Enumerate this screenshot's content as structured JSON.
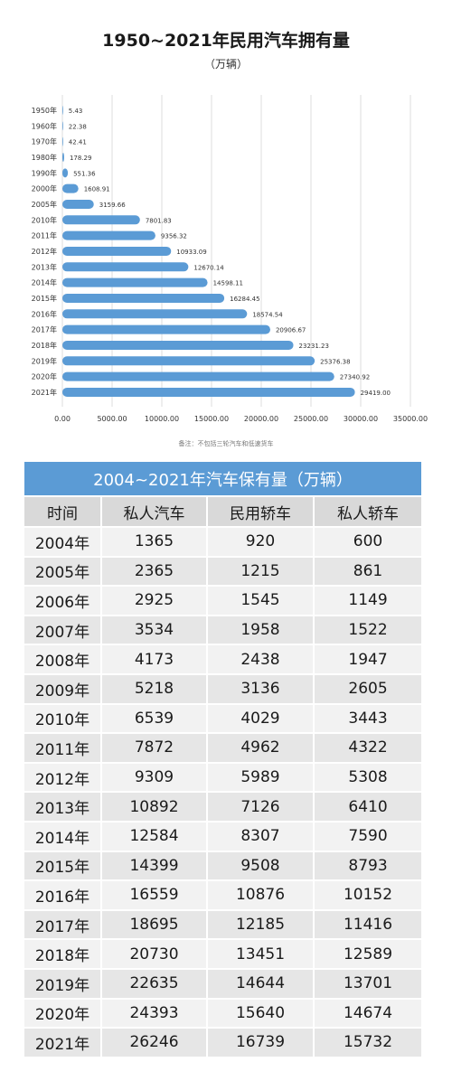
{
  "chart_data": {
    "type": "bar",
    "orientation": "horizontal",
    "title": "1950~2021年民用汽车拥有量",
    "subtitle": "（万辆）",
    "note": "备注：不包括三轮汽车和低速货车",
    "categories": [
      "1950年",
      "1960年",
      "1970年",
      "1980年",
      "1990年",
      "2000年",
      "2005年",
      "2010年",
      "2011年",
      "2012年",
      "2013年",
      "2014年",
      "2015年",
      "2016年",
      "2017年",
      "2018年",
      "2019年",
      "2020年",
      "2021年"
    ],
    "values": [
      5.43,
      22.38,
      42.41,
      178.29,
      551.36,
      1608.91,
      3159.66,
      7801.83,
      9356.32,
      10933.09,
      12670.14,
      14598.11,
      16284.45,
      18574.54,
      20906.67,
      23231.23,
      25376.38,
      27340.92,
      29419.0
    ],
    "value_labels": [
      "5.43",
      "22.38",
      "42.41",
      "178.29",
      "551.36",
      "1608.91",
      "3159.66",
      "7801.83",
      "9356.32",
      "10933.09",
      "12670.14",
      "14598.11",
      "16284.45",
      "18574.54",
      "20906.67",
      "23231.23",
      "25376.38",
      "27340.92",
      "29419.00"
    ],
    "xlim": [
      0,
      35000
    ],
    "x_ticks": [
      "0.00",
      "5000.00",
      "10000.00",
      "15000.00",
      "20000.00",
      "25000.00",
      "30000.00",
      "35000.00"
    ],
    "grid": true,
    "bar_color": "#5b9bd5"
  },
  "table": {
    "title": "2004~2021年汽车保有量（万辆）",
    "headers": [
      "时间",
      "私人汽车",
      "民用轿车",
      "私人轿车"
    ],
    "rows": [
      [
        "2004年",
        "1365",
        "920",
        "600"
      ],
      [
        "2005年",
        "2365",
        "1215",
        "861"
      ],
      [
        "2006年",
        "2925",
        "1545",
        "1149"
      ],
      [
        "2007年",
        "3534",
        "1958",
        "1522"
      ],
      [
        "2008年",
        "4173",
        "2438",
        "1947"
      ],
      [
        "2009年",
        "5218",
        "3136",
        "2605"
      ],
      [
        "2010年",
        "6539",
        "4029",
        "3443"
      ],
      [
        "2011年",
        "7872",
        "4962",
        "4322"
      ],
      [
        "2012年",
        "9309",
        "5989",
        "5308"
      ],
      [
        "2013年",
        "10892",
        "7126",
        "6410"
      ],
      [
        "2014年",
        "12584",
        "8307",
        "7590"
      ],
      [
        "2015年",
        "14399",
        "9508",
        "8793"
      ],
      [
        "2016年",
        "16559",
        "10876",
        "10152"
      ],
      [
        "2017年",
        "18695",
        "12185",
        "11416"
      ],
      [
        "2018年",
        "20730",
        "13451",
        "12589"
      ],
      [
        "2019年",
        "22635",
        "14644",
        "13701"
      ],
      [
        "2020年",
        "24393",
        "15640",
        "14674"
      ],
      [
        "2021年",
        "26246",
        "16739",
        "15732"
      ]
    ],
    "header_color": "#5b9bd5"
  }
}
